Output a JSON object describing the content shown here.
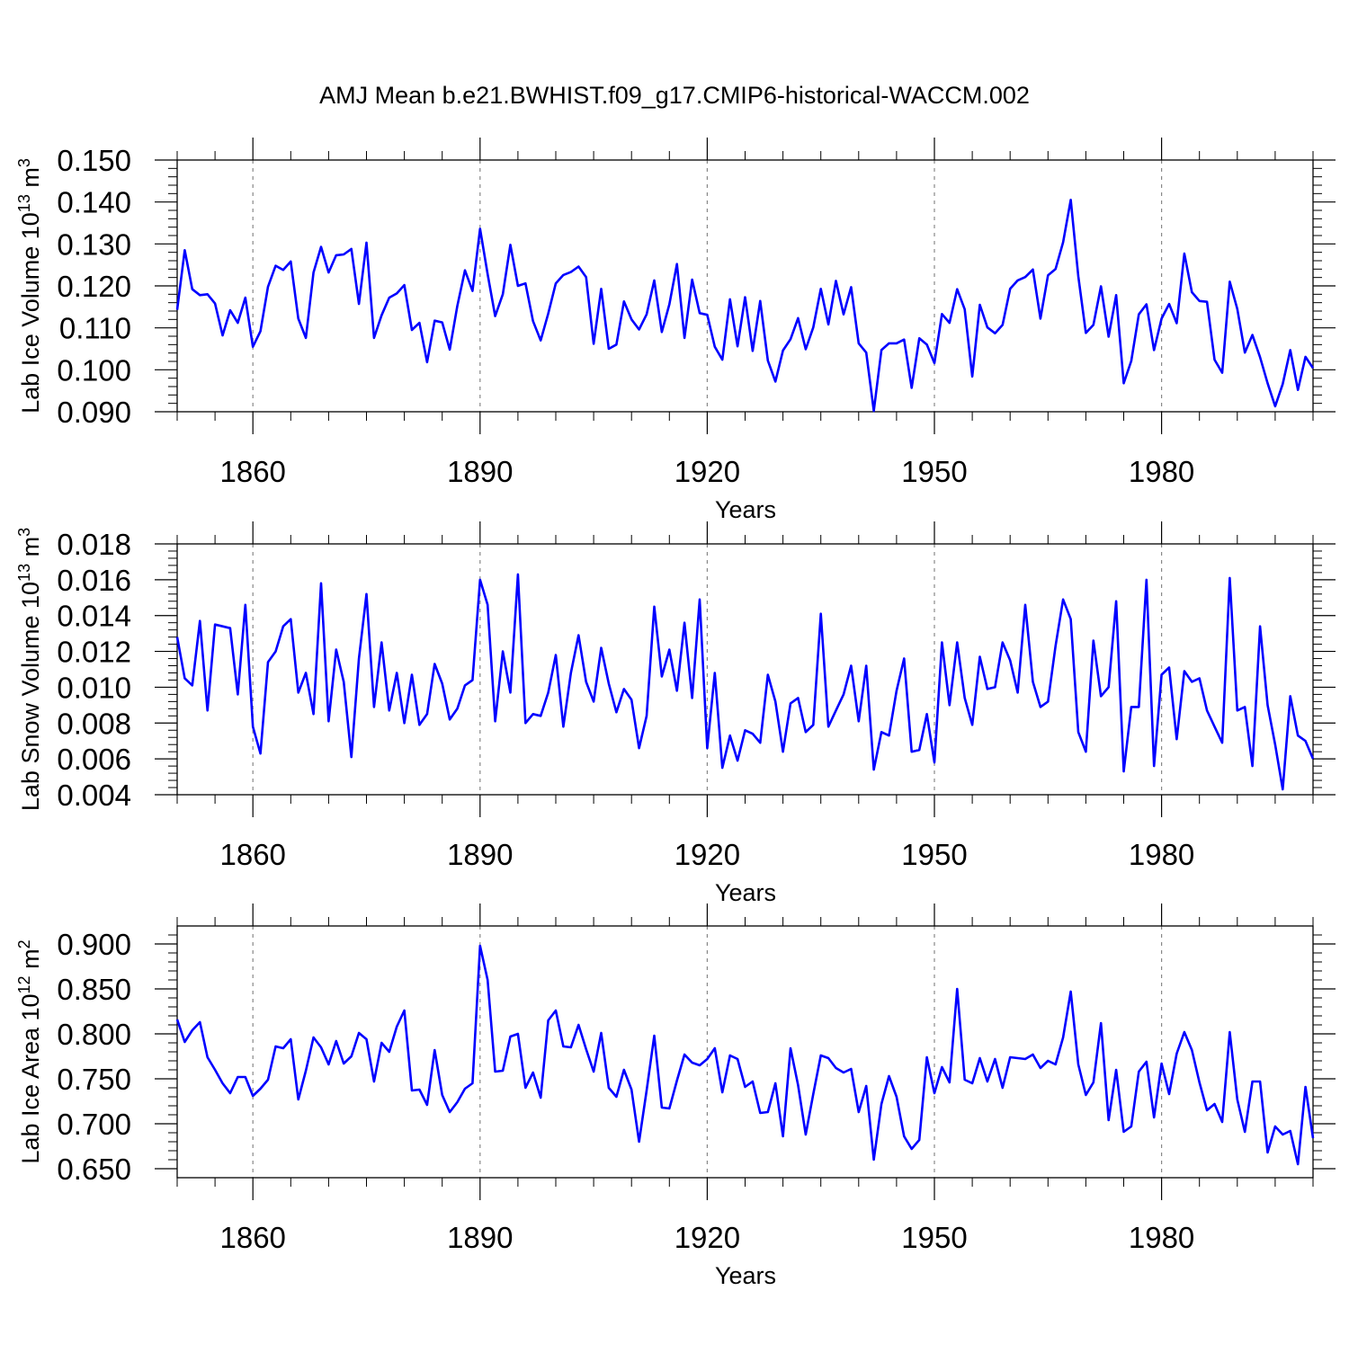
{
  "figure_title": "AMJ Mean b.e21.BWHIST.f09_g17.CMIP6-historical-WACCM.002",
  "line_color": "#0000ff",
  "chart_data": [
    {
      "type": "line",
      "title": "AMJ Mean b.e21.BWHIST.f09_g17.CMIP6-historical-WACCM.002",
      "ylabel": "Lab Ice Volume",
      "yunit": "10",
      "yunit_exp": "13",
      "yunit_tail": " m",
      "yunit_tail_exp": "3",
      "xlabel": "Years",
      "xlim": [
        1850,
        2000
      ],
      "ylim": [
        0.09,
        0.15
      ],
      "yticks": [
        "0.090",
        "0.100",
        "0.110",
        "0.120",
        "0.130",
        "0.140",
        "0.150"
      ],
      "ytick_values": [
        0.09,
        0.1,
        0.11,
        0.12,
        0.13,
        0.14,
        0.15
      ],
      "xticks": [
        "1860",
        "1890",
        "1920",
        "1950",
        "1980"
      ],
      "xtick_values": [
        1860,
        1890,
        1920,
        1950,
        1980
      ],
      "x_start": 1850,
      "values": [
        0.1143,
        0.1285,
        0.1192,
        0.1178,
        0.118,
        0.1158,
        0.1082,
        0.1142,
        0.1112,
        0.1172,
        0.1055,
        0.1092,
        0.1198,
        0.1248,
        0.1238,
        0.1258,
        0.1122,
        0.1076,
        0.1232,
        0.1293,
        0.1232,
        0.1273,
        0.1275,
        0.1288,
        0.1157,
        0.1303,
        0.1076,
        0.113,
        0.1172,
        0.1182,
        0.1202,
        0.1095,
        0.1112,
        0.1018,
        0.1117,
        0.1113,
        0.1048,
        0.1152,
        0.1237,
        0.1188,
        0.1336,
        0.1228,
        0.1128,
        0.118,
        0.1298,
        0.12,
        0.1206,
        0.1116,
        0.107,
        0.1134,
        0.1206,
        0.1226,
        0.1233,
        0.1246,
        0.1221,
        0.1062,
        0.1193,
        0.105,
        0.106,
        0.1163,
        0.112,
        0.1096,
        0.1132,
        0.1213,
        0.109,
        0.1156,
        0.1252,
        0.1076,
        0.1215,
        0.1135,
        0.1131,
        0.1055,
        0.1024,
        0.1168,
        0.1056,
        0.1173,
        0.1045,
        0.1164,
        0.1022,
        0.0972,
        0.1046,
        0.1073,
        0.1123,
        0.1049,
        0.1101,
        0.1193,
        0.1108,
        0.1212,
        0.1132,
        0.1197,
        0.1063,
        0.1041,
        0.0902,
        0.1047,
        0.1063,
        0.1063,
        0.1072,
        0.0957,
        0.1075,
        0.106,
        0.1016,
        0.1133,
        0.1112,
        0.1192,
        0.1144,
        0.0984,
        0.1155,
        0.1101,
        0.1087,
        0.1107,
        0.1193,
        0.1213,
        0.1221,
        0.1239,
        0.1122,
        0.1225,
        0.124,
        0.1304,
        0.1405,
        0.1223,
        0.1088,
        0.1107,
        0.1199,
        0.1079,
        0.1178,
        0.0968,
        0.1021,
        0.1132,
        0.1156,
        0.1047,
        0.1122,
        0.1157,
        0.1111,
        0.1277,
        0.1185,
        0.1164,
        0.1162,
        0.1024,
        0.0993,
        0.121,
        0.1145,
        0.1041,
        0.1083,
        0.103,
        0.0968,
        0.0913,
        0.0966,
        0.1047,
        0.0952,
        0.1031,
        0.1004
      ]
    },
    {
      "type": "line",
      "ylabel": "Lab Snow Volume",
      "yunit": "10",
      "yunit_exp": "13",
      "yunit_tail": " m",
      "yunit_tail_exp": "3",
      "xlabel": "Years",
      "xlim": [
        1850,
        2000
      ],
      "ylim": [
        0.004,
        0.018
      ],
      "yticks": [
        "0.004",
        "0.006",
        "0.008",
        "0.010",
        "0.012",
        "0.014",
        "0.016",
        "0.018"
      ],
      "ytick_values": [
        0.004,
        0.006,
        0.008,
        0.01,
        0.012,
        0.014,
        0.016,
        0.018
      ],
      "xticks": [
        "1860",
        "1890",
        "1920",
        "1950",
        "1980"
      ],
      "xtick_values": [
        1860,
        1890,
        1920,
        1950,
        1980
      ],
      "x_start": 1850,
      "values": [
        0.0128,
        0.0105,
        0.0101,
        0.0137,
        0.0087,
        0.0135,
        0.0134,
        0.0133,
        0.0096,
        0.0146,
        0.0078,
        0.0063,
        0.0114,
        0.012,
        0.0134,
        0.0138,
        0.0097,
        0.0108,
        0.0085,
        0.0158,
        0.0081,
        0.0121,
        0.0103,
        0.0061,
        0.0116,
        0.0152,
        0.0089,
        0.0125,
        0.0087,
        0.0108,
        0.008,
        0.0107,
        0.0079,
        0.0085,
        0.0113,
        0.0102,
        0.0082,
        0.0088,
        0.0101,
        0.0104,
        0.016,
        0.0146,
        0.0081,
        0.012,
        0.0097,
        0.0163,
        0.008,
        0.0085,
        0.0084,
        0.0097,
        0.0118,
        0.0078,
        0.0108,
        0.0129,
        0.0103,
        0.0092,
        0.0122,
        0.0102,
        0.0086,
        0.0099,
        0.0093,
        0.0066,
        0.0084,
        0.0145,
        0.0106,
        0.0121,
        0.0098,
        0.0136,
        0.0094,
        0.0149,
        0.0066,
        0.0108,
        0.0055,
        0.0073,
        0.0059,
        0.0076,
        0.0074,
        0.0069,
        0.0107,
        0.0092,
        0.0064,
        0.0091,
        0.0094,
        0.0075,
        0.0079,
        0.0141,
        0.0078,
        0.0087,
        0.0096,
        0.0112,
        0.0081,
        0.0112,
        0.0054,
        0.0075,
        0.0073,
        0.0098,
        0.0116,
        0.0064,
        0.0065,
        0.0085,
        0.0058,
        0.0125,
        0.009,
        0.0125,
        0.0094,
        0.0079,
        0.0117,
        0.0099,
        0.01,
        0.0125,
        0.0115,
        0.0097,
        0.0146,
        0.0103,
        0.0089,
        0.0092,
        0.0123,
        0.0149,
        0.0138,
        0.0075,
        0.0064,
        0.0126,
        0.0095,
        0.01,
        0.0148,
        0.0053,
        0.0089,
        0.0089,
        0.016,
        0.0056,
        0.0107,
        0.0111,
        0.0071,
        0.0109,
        0.0103,
        0.0105,
        0.0087,
        0.0078,
        0.0069,
        0.0161,
        0.0087,
        0.0089,
        0.0056,
        0.0134,
        0.009,
        0.0068,
        0.0043,
        0.0095,
        0.0073,
        0.007,
        0.006
      ]
    },
    {
      "type": "line",
      "ylabel": "Lab Ice Area",
      "yunit": "10",
      "yunit_exp": "12",
      "yunit_tail": " m",
      "yunit_tail_exp": "2",
      "xlabel": "Years",
      "xlim": [
        1850,
        2000
      ],
      "ylim": [
        0.64,
        0.92
      ],
      "yticks": [
        "0.650",
        "0.700",
        "0.750",
        "0.800",
        "0.850",
        "0.900"
      ],
      "ytick_values": [
        0.65,
        0.7,
        0.75,
        0.8,
        0.85,
        0.9
      ],
      "xticks": [
        "1860",
        "1890",
        "1920",
        "1950",
        "1980"
      ],
      "xtick_values": [
        1860,
        1890,
        1920,
        1950,
        1980
      ],
      "x_start": 1850,
      "values": [
        0.816,
        0.791,
        0.804,
        0.813,
        0.774,
        0.76,
        0.745,
        0.734,
        0.752,
        0.752,
        0.731,
        0.739,
        0.749,
        0.786,
        0.784,
        0.794,
        0.727,
        0.759,
        0.796,
        0.785,
        0.766,
        0.792,
        0.767,
        0.775,
        0.801,
        0.794,
        0.747,
        0.79,
        0.78,
        0.808,
        0.826,
        0.737,
        0.738,
        0.721,
        0.782,
        0.732,
        0.713,
        0.724,
        0.739,
        0.745,
        0.898,
        0.86,
        0.758,
        0.759,
        0.797,
        0.8,
        0.74,
        0.757,
        0.729,
        0.815,
        0.826,
        0.786,
        0.785,
        0.81,
        0.783,
        0.758,
        0.801,
        0.74,
        0.73,
        0.76,
        0.738,
        0.68,
        0.737,
        0.798,
        0.718,
        0.717,
        0.748,
        0.777,
        0.768,
        0.765,
        0.772,
        0.784,
        0.735,
        0.776,
        0.772,
        0.741,
        0.747,
        0.712,
        0.713,
        0.745,
        0.686,
        0.784,
        0.743,
        0.688,
        0.733,
        0.776,
        0.773,
        0.762,
        0.757,
        0.761,
        0.713,
        0.742,
        0.66,
        0.722,
        0.753,
        0.73,
        0.686,
        0.672,
        0.682,
        0.774,
        0.734,
        0.763,
        0.746,
        0.85,
        0.749,
        0.745,
        0.773,
        0.747,
        0.772,
        0.74,
        0.774,
        0.773,
        0.772,
        0.777,
        0.762,
        0.77,
        0.766,
        0.796,
        0.847,
        0.766,
        0.732,
        0.746,
        0.812,
        0.704,
        0.76,
        0.691,
        0.697,
        0.758,
        0.769,
        0.707,
        0.767,
        0.733,
        0.778,
        0.802,
        0.782,
        0.746,
        0.715,
        0.722,
        0.702,
        0.802,
        0.727,
        0.691,
        0.747,
        0.747,
        0.668,
        0.697,
        0.688,
        0.692,
        0.655,
        0.741,
        0.684
      ]
    }
  ]
}
